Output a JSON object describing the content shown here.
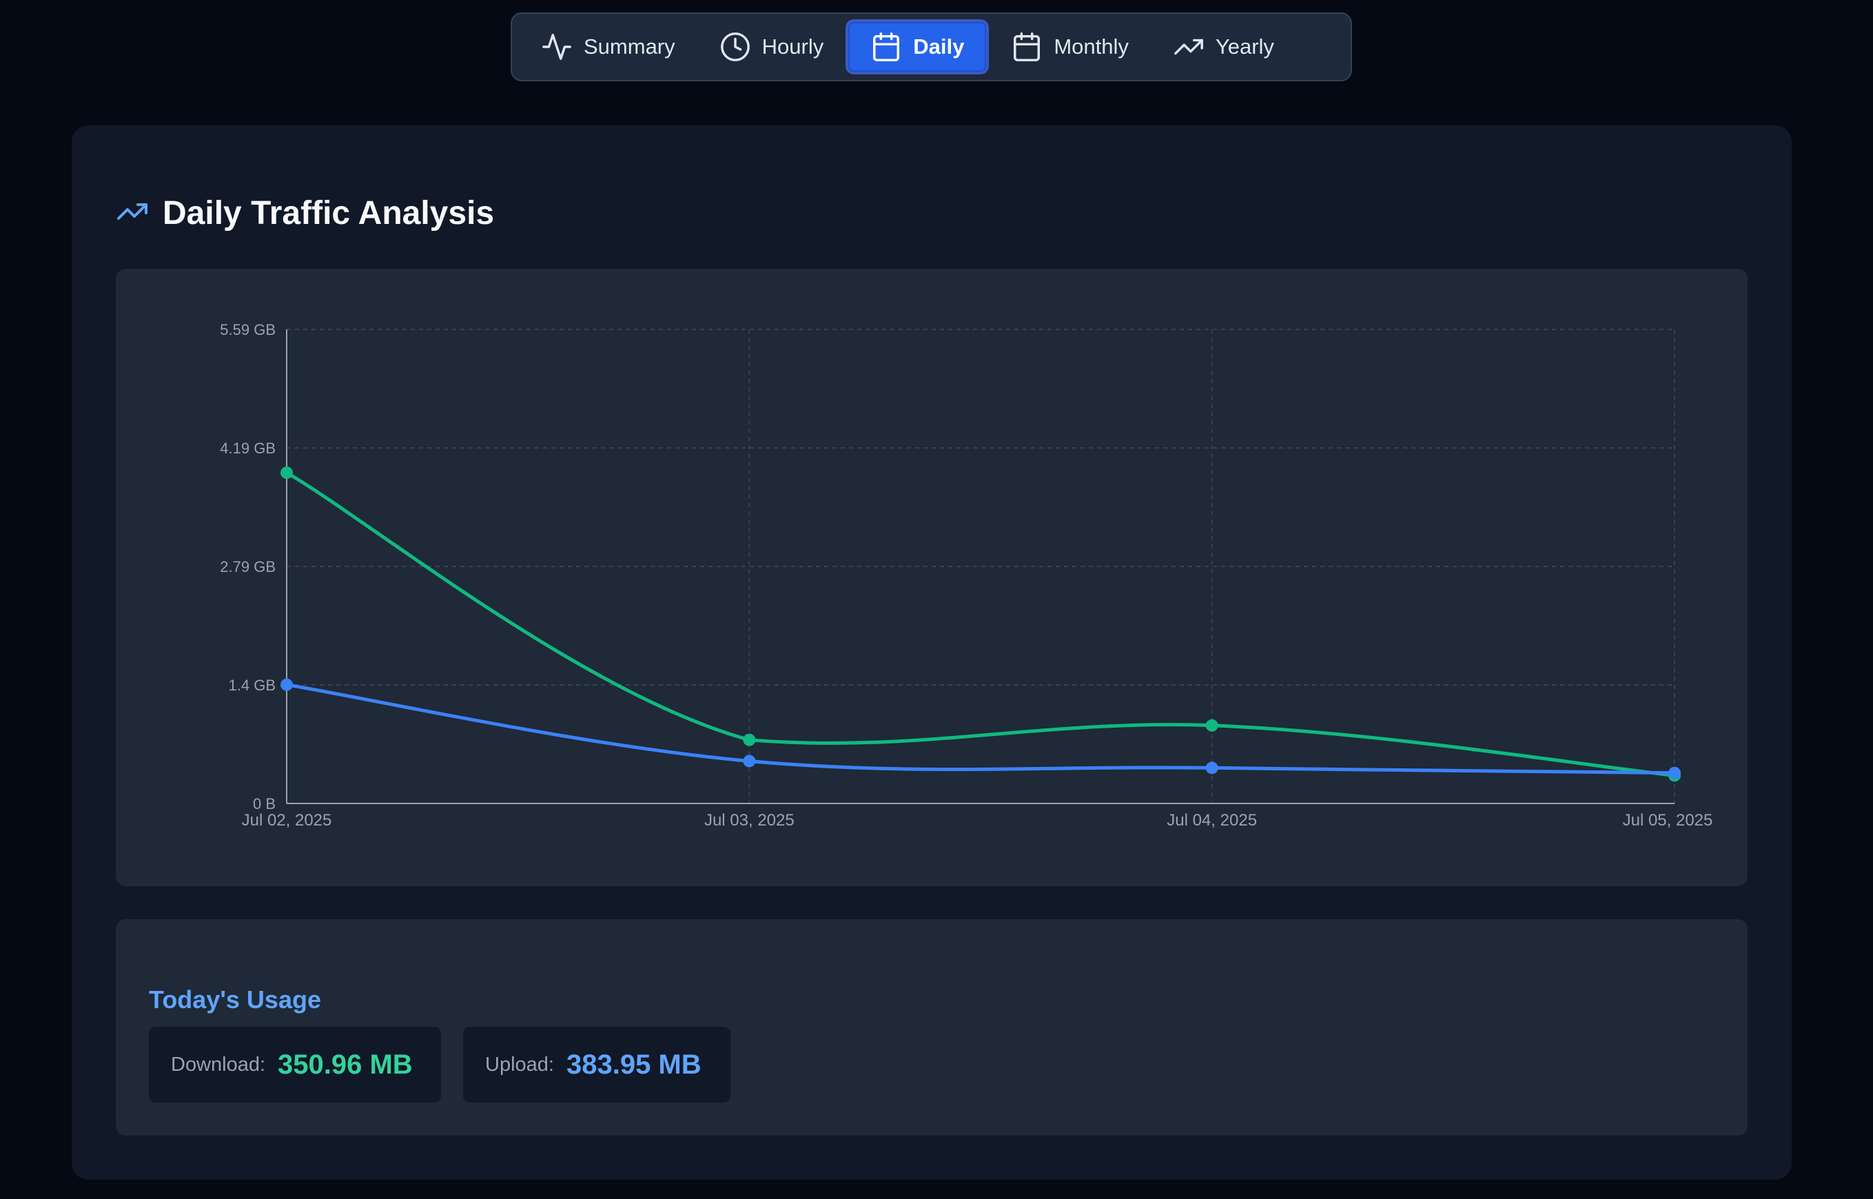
{
  "tabs": [
    {
      "label": "Summary",
      "icon": "activity-icon",
      "active": false
    },
    {
      "label": "Hourly",
      "icon": "clock-icon",
      "active": false
    },
    {
      "label": "Daily",
      "icon": "calendar-icon",
      "active": true
    },
    {
      "label": "Monthly",
      "icon": "calendar-icon",
      "active": false
    },
    {
      "label": "Yearly",
      "icon": "trending-up-icon",
      "active": false
    }
  ],
  "card": {
    "title": "Daily Traffic Analysis",
    "title_icon": "trending-up-icon"
  },
  "colors": {
    "series_green": "#10b981",
    "series_blue": "#3b82f6",
    "accent": "#2563eb"
  },
  "chart_data": {
    "type": "line",
    "x": [
      "Jul 02, 2025",
      "Jul 03, 2025",
      "Jul 04, 2025",
      "Jul 05, 2025"
    ],
    "y_ticks": [
      "0 B",
      "1.4 GB",
      "2.79 GB",
      "4.19 GB",
      "5.59 GB"
    ],
    "ylim_gb": [
      0,
      5.59
    ],
    "grid": true,
    "series": [
      {
        "color": "#10b981",
        "values_gb": [
          3.9,
          0.75,
          0.92,
          0.33
        ]
      },
      {
        "color": "#3b82f6",
        "values_gb": [
          1.4,
          0.5,
          0.42,
          0.36
        ]
      }
    ]
  },
  "usage": {
    "title": "Today's Usage",
    "download_label": "Download:",
    "download_value": "350.96 MB",
    "upload_label": "Upload:",
    "upload_value": "383.95 MB"
  }
}
